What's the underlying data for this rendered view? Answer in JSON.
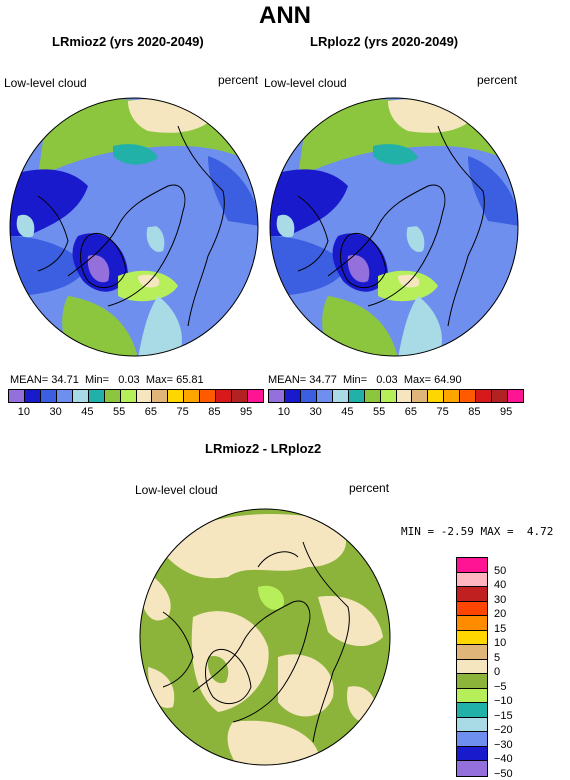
{
  "main_title": "ANN",
  "panels": [
    {
      "title": "LRmioz2 (yrs 2020-2049)",
      "variable": "Low-level cloud",
      "units": "percent",
      "mean_label": "MEAN=",
      "mean_value": "34.71",
      "min_label": "Min=",
      "min_value": "0.03",
      "max_label": "Max=",
      "max_value": "65.81"
    },
    {
      "title": "LRploz2 (yrs 2020-2049)",
      "variable": "Low-level cloud",
      "units": "percent",
      "mean_label": "MEAN=",
      "mean_value": "34.77",
      "min_label": "Min=",
      "min_value": "0.03",
      "max_label": "Max=",
      "max_value": "64.90"
    }
  ],
  "colorbar_top": {
    "colors": [
      "#9370db",
      "#1a1acd",
      "#3b5fe0",
      "#6f8fef",
      "#a8dbe6",
      "#22b1a8",
      "#8cc63f",
      "#b6ef5a",
      "#f5e6c0",
      "#e0b57a",
      "#ffd700",
      "#ffa500",
      "#ff5a00",
      "#d7191c",
      "#b22222",
      "#ff1493"
    ],
    "ticks": [
      "10",
      "30",
      "45",
      "55",
      "65",
      "75",
      "85",
      "95"
    ]
  },
  "difference_panel": {
    "title": "LRmioz2 - LRploz2",
    "variable": "Low-level cloud",
    "units": "percent",
    "min_label": "MIN =",
    "min_value": "-2.59",
    "max_label": "MAX =",
    "max_value": "4.72"
  },
  "colorbar_diff": {
    "colors": [
      "#ff1493",
      "#ffb6c1",
      "#c02020",
      "#ff4500",
      "#ff8c00",
      "#ffd700",
      "#e0b57a",
      "#f5e6c0",
      "#8db43a",
      "#b6ef5a",
      "#22b1a8",
      "#a8dbe6",
      "#6f8fef",
      "#1a1acd",
      "#9370db"
    ],
    "ticks": [
      "50",
      "40",
      "30",
      "20",
      "15",
      "10",
      "5",
      "0",
      "−5",
      "−10",
      "−15",
      "−20",
      "−30",
      "−40",
      "−50"
    ]
  }
}
